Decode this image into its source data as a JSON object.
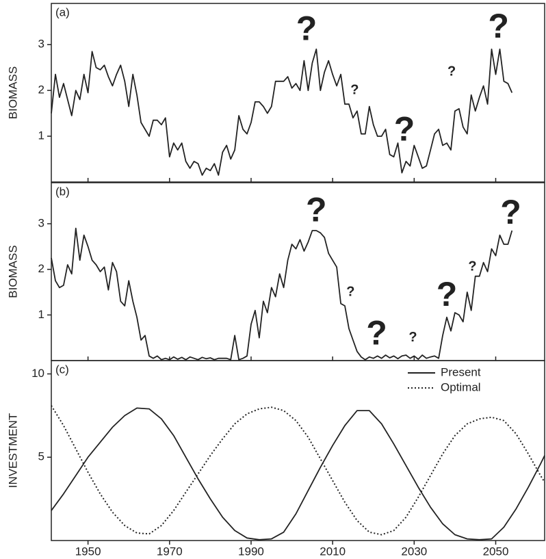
{
  "chart_data": [
    {
      "type": "line",
      "label": "(a)",
      "y_label": "BIOMASS",
      "xlim": [
        1941,
        2062
      ],
      "ylim": [
        0,
        3.9
      ],
      "yticks": [
        1,
        2,
        3
      ],
      "x": [
        1941,
        1942,
        1943,
        1944,
        1945,
        1946,
        1947,
        1948,
        1949,
        1950,
        1951,
        1952,
        1953,
        1954,
        1955,
        1956,
        1957,
        1958,
        1959,
        1960,
        1961,
        1962,
        1963,
        1964,
        1965,
        1966,
        1967,
        1968,
        1969,
        1970,
        1971,
        1972,
        1973,
        1974,
        1975,
        1976,
        1977,
        1978,
        1979,
        1980,
        1981,
        1982,
        1983,
        1984,
        1985,
        1986,
        1987,
        1988,
        1989,
        1990,
        1991,
        1992,
        1993,
        1994,
        1995,
        1996,
        1997,
        1998,
        1999,
        2000,
        2001,
        2002,
        2003,
        2004,
        2005,
        2006,
        2007,
        2008,
        2009,
        2010,
        2011,
        2012,
        2013,
        2014,
        2015,
        2016,
        2017,
        2018,
        2019,
        2020,
        2021,
        2022,
        2023,
        2024,
        2025,
        2026,
        2027,
        2028,
        2029,
        2030,
        2031,
        2032,
        2033,
        2034,
        2035,
        2036,
        2037,
        2038,
        2039,
        2040,
        2041,
        2042,
        2043,
        2044,
        2045,
        2046,
        2047,
        2048,
        2049,
        2050,
        2051,
        2052,
        2053,
        2054
      ],
      "series": [
        {
          "color": "#222222",
          "dash": "solid",
          "values": [
            1.5,
            2.35,
            1.85,
            2.15,
            1.8,
            1.45,
            2.0,
            1.8,
            2.35,
            1.95,
            2.85,
            2.5,
            2.45,
            2.55,
            2.3,
            2.1,
            2.35,
            2.55,
            2.2,
            1.65,
            2.35,
            1.9,
            1.3,
            1.15,
            1.0,
            1.35,
            1.35,
            1.25,
            1.4,
            0.55,
            0.85,
            0.7,
            0.85,
            0.45,
            0.3,
            0.45,
            0.4,
            0.15,
            0.3,
            0.25,
            0.4,
            0.15,
            0.65,
            0.8,
            0.5,
            0.7,
            1.45,
            1.15,
            1.05,
            1.3,
            1.75,
            1.75,
            1.65,
            1.5,
            1.65,
            2.2,
            2.2,
            2.2,
            2.3,
            2.05,
            2.15,
            2.0,
            2.65,
            2.0,
            2.6,
            2.9,
            2.0,
            2.4,
            2.65,
            2.35,
            2.1,
            2.35,
            1.7,
            1.7,
            1.4,
            1.55,
            1.05,
            1.05,
            1.65,
            1.25,
            1.0,
            1.0,
            1.15,
            0.6,
            0.55,
            0.85,
            0.2,
            0.45,
            0.35,
            0.8,
            0.55,
            0.3,
            0.35,
            0.7,
            1.05,
            1.15,
            0.8,
            0.85,
            0.7,
            1.55,
            1.6,
            1.2,
            1.05,
            1.9,
            1.55,
            1.85,
            2.1,
            1.7,
            2.9,
            2.35,
            2.9,
            2.2,
            2.15,
            1.95
          ]
        }
      ],
      "annotations": [
        {
          "text": "?",
          "x": 2003.6,
          "y": 3.3
        },
        {
          "text": "?",
          "x": 2015.4,
          "y": 2.0
        },
        {
          "text": "?",
          "x": 2027.6,
          "y": 1.1
        },
        {
          "text": "?",
          "x": 2039.2,
          "y": 2.4
        },
        {
          "text": "?",
          "x": 2050.7,
          "y": 3.35
        }
      ]
    },
    {
      "type": "line",
      "label": "(b)",
      "y_label": "BIOMASS",
      "xlim": [
        1941,
        2062
      ],
      "ylim": [
        0,
        3.9
      ],
      "yticks": [
        1,
        2,
        3
      ],
      "x": [
        1941,
        1942,
        1943,
        1944,
        1945,
        1946,
        1947,
        1948,
        1949,
        1950,
        1951,
        1952,
        1953,
        1954,
        1955,
        1956,
        1957,
        1958,
        1959,
        1960,
        1961,
        1962,
        1963,
        1964,
        1965,
        1966,
        1967,
        1968,
        1969,
        1970,
        1971,
        1972,
        1973,
        1974,
        1975,
        1976,
        1977,
        1978,
        1979,
        1980,
        1981,
        1982,
        1983,
        1984,
        1985,
        1986,
        1987,
        1988,
        1989,
        1990,
        1991,
        1992,
        1993,
        1994,
        1995,
        1996,
        1997,
        1998,
        1999,
        2000,
        2001,
        2002,
        2003,
        2004,
        2005,
        2006,
        2007,
        2008,
        2009,
        2010,
        2011,
        2012,
        2013,
        2014,
        2015,
        2016,
        2017,
        2018,
        2019,
        2020,
        2021,
        2022,
        2023,
        2024,
        2025,
        2026,
        2027,
        2028,
        2029,
        2030,
        2031,
        2032,
        2033,
        2034,
        2035,
        2036,
        2037,
        2038,
        2039,
        2040,
        2041,
        2042,
        2043,
        2044,
        2045,
        2046,
        2047,
        2048,
        2049,
        2050,
        2051,
        2052,
        2053,
        2054
      ],
      "series": [
        {
          "color": "#222222",
          "dash": "solid",
          "values": [
            2.25,
            1.75,
            1.6,
            1.65,
            2.1,
            1.9,
            2.9,
            2.2,
            2.75,
            2.5,
            2.2,
            2.1,
            1.95,
            2.05,
            1.55,
            2.15,
            1.95,
            1.3,
            1.2,
            1.75,
            1.3,
            0.95,
            0.45,
            0.55,
            0.1,
            0.05,
            0.1,
            0.02,
            0.05,
            0.02,
            0.08,
            0.03,
            0.07,
            0.02,
            0.08,
            0.05,
            0.02,
            0.07,
            0.04,
            0.06,
            0.02,
            0.05,
            0.05,
            0.05,
            0.02,
            0.55,
            0.02,
            0.05,
            0.1,
            0.8,
            1.1,
            0.5,
            1.3,
            1.05,
            1.6,
            1.4,
            1.9,
            1.6,
            2.2,
            2.55,
            2.45,
            2.65,
            2.4,
            2.6,
            2.85,
            2.85,
            2.8,
            2.7,
            2.35,
            2.2,
            2.05,
            1.25,
            1.2,
            0.7,
            0.45,
            0.2,
            0.08,
            0.02,
            0.08,
            0.05,
            0.1,
            0.05,
            0.12,
            0.06,
            0.1,
            0.04,
            0.1,
            0.12,
            0.05,
            0.1,
            0.03,
            0.12,
            0.05,
            0.08,
            0.1,
            0.05,
            0.55,
            0.95,
            0.65,
            1.05,
            1.0,
            0.85,
            1.5,
            1.1,
            1.85,
            1.85,
            2.15,
            1.95,
            2.45,
            2.3,
            2.75,
            2.55,
            2.55,
            2.85
          ]
        }
      ],
      "annotations": [
        {
          "text": "?",
          "x": 2006,
          "y": 3.25
        },
        {
          "text": "?",
          "x": 2014.4,
          "y": 1.5
        },
        {
          "text": "?",
          "x": 2020.8,
          "y": 0.55
        },
        {
          "text": "?",
          "x": 2029.7,
          "y": 0.5
        },
        {
          "text": "?",
          "x": 2038,
          "y": 1.4
        },
        {
          "text": "?",
          "x": 2044.3,
          "y": 2.05
        },
        {
          "text": "?",
          "x": 2053.7,
          "y": 3.2
        }
      ]
    },
    {
      "type": "line",
      "label": "(c)",
      "y_label": "INVESTMENT",
      "legend": "upper right",
      "xlim": [
        1941,
        2062
      ],
      "ylim": [
        0,
        10.8
      ],
      "yticks": [
        5,
        10
      ],
      "xticks": [
        1950,
        1970,
        1990,
        2010,
        2030,
        2050
      ],
      "x": [
        1941,
        1944,
        1947,
        1950,
        1953,
        1956,
        1959,
        1962,
        1965,
        1968,
        1971,
        1974,
        1977,
        1980,
        1983,
        1986,
        1989,
        1992,
        1995,
        1998,
        2001,
        2004,
        2007,
        2010,
        2013,
        2016,
        2019,
        2022,
        2025,
        2028,
        2031,
        2034,
        2037,
        2040,
        2043,
        2046,
        2049,
        2052,
        2055,
        2058,
        2061,
        2062
      ],
      "series": [
        {
          "name": "Present",
          "color": "#222222",
          "dash": "solid",
          "values": [
            1.8,
            2.8,
            3.9,
            5.0,
            5.9,
            6.8,
            7.5,
            7.95,
            7.9,
            7.3,
            6.3,
            5.0,
            3.7,
            2.5,
            1.4,
            0.6,
            0.15,
            0.05,
            0.1,
            0.5,
            1.6,
            3.0,
            4.4,
            5.7,
            6.9,
            7.8,
            7.8,
            7.0,
            5.8,
            4.5,
            3.2,
            2.0,
            1.0,
            0.35,
            0.1,
            0.05,
            0.1,
            0.8,
            1.9,
            3.2,
            4.6,
            5.1
          ]
        },
        {
          "name": "Optimal",
          "color": "#222222",
          "dash": "dotted",
          "values": [
            8.1,
            6.9,
            5.5,
            4.1,
            2.8,
            1.7,
            0.9,
            0.45,
            0.4,
            0.9,
            1.8,
            2.9,
            4.0,
            5.1,
            6.1,
            7.0,
            7.6,
            7.9,
            8.0,
            7.8,
            7.2,
            6.2,
            4.9,
            3.6,
            2.3,
            1.2,
            0.5,
            0.35,
            0.6,
            1.4,
            2.6,
            3.9,
            5.2,
            6.3,
            7.0,
            7.3,
            7.4,
            7.2,
            6.4,
            5.2,
            3.9,
            3.5
          ]
        }
      ]
    }
  ]
}
